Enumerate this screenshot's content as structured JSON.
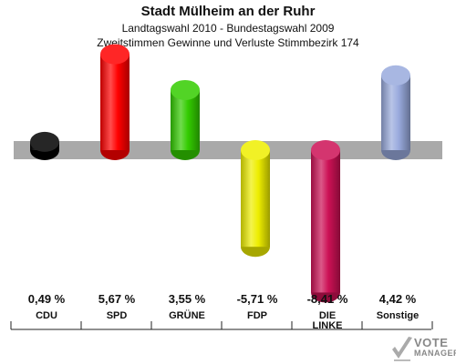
{
  "header": {
    "title": "Stadt Mülheim an der Ruhr",
    "subtitle1": "Landtagswahl 2010 - Bundestagswahl 2009",
    "subtitle2": "Zweitstimmen Gewinne und Verluste Stimmbezirk 174"
  },
  "chart_data": {
    "type": "bar",
    "categories": [
      "CDU",
      "SPD",
      "GRÜNE",
      "FDP",
      "DIE LINKE",
      "Sonstige"
    ],
    "values": [
      0.49,
      5.67,
      3.55,
      -5.71,
      -8.41,
      4.42
    ],
    "value_labels": [
      "0,49 %",
      "5,67 %",
      "3,55 %",
      "-5,71 %",
      "-8,41 %",
      "4,42 %"
    ],
    "colors": [
      "#000000",
      "#ff0000",
      "#33cc00",
      "#eeee00",
      "#cc1155",
      "#99aadd"
    ],
    "grid": false,
    "legend": "none"
  },
  "logo": {
    "line1": "VOTE",
    "line2": "MANAGER"
  }
}
